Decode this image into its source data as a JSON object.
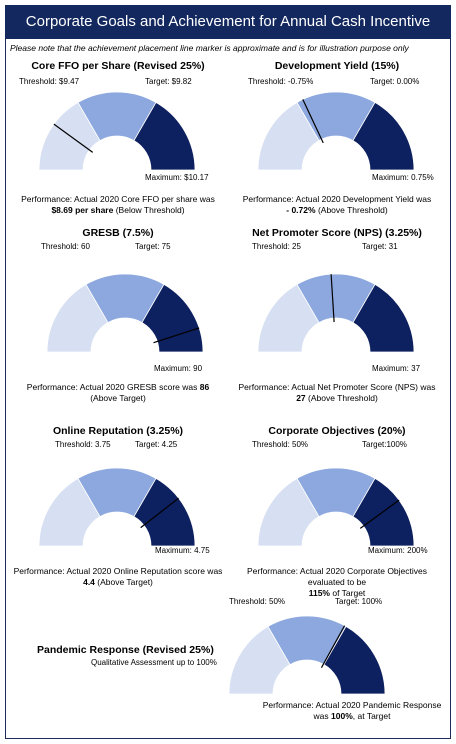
{
  "title": "Corporate Goals and Achievement for Annual Cash Incentive",
  "note": "Please note that the achievement placement line marker is approximate and is for illustration purpose only",
  "colors": {
    "header_bg": "#13285f",
    "light": "#d7e0f2",
    "mid": "#8da8de",
    "dark": "#0d205f",
    "needle": "#000000"
  },
  "chart_data": [
    {
      "type": "gauge",
      "id": "ffo",
      "title": "Core FFO per Share (Revised 25%)",
      "threshold_label": "Threshold: $9.47",
      "target_label": "Target: $9.82",
      "maximum_label": "Maximum: $10.17",
      "perf_text": "Performance: Actual 2020 Core FFO per share was",
      "perf_value": "$8.69 per share",
      "perf_suffix": "(Below Threshold)",
      "needle_fraction": 0.2
    },
    {
      "type": "gauge",
      "id": "dev",
      "title": "Development Yield (15%)",
      "threshold_label": "Threshold: -0.75%",
      "target_label": "Target: 0.00%",
      "maximum_label": "Maximum: 0.75%",
      "perf_text": "Performance: Actual 2020 Development Yield was",
      "perf_value": "- 0.72%",
      "perf_suffix": "(Above Threshold)",
      "needle_fraction": 0.36
    },
    {
      "type": "gauge",
      "id": "gresb",
      "title": "GRESB (7.5%)",
      "threshold_label": "Threshold: 60",
      "target_label": "Target: 75",
      "maximum_label": "Maximum: 90",
      "perf_text": "Performance: Actual 2020 GRESB score was",
      "perf_value": "86",
      "perf_suffix": "(Above Target)",
      "needle_fraction": 0.9
    },
    {
      "type": "gauge",
      "id": "nps",
      "title": "Net Promoter Score (NPS) (3.25%)",
      "threshold_label": "Threshold: 25",
      "target_label": "Target: 31",
      "maximum_label": "Maximum: 37",
      "perf_text": "Performance: Actual Net Promoter Score (NPS) was",
      "perf_value": "27",
      "perf_suffix": "(Above Threshold)",
      "needle_fraction": 0.48
    },
    {
      "type": "gauge",
      "id": "online",
      "title": "Online Reputation (3.25%)",
      "threshold_label": "Threshold: 3.75",
      "target_label": "Target: 4.25",
      "maximum_label": "Maximum: 4.75",
      "perf_text": "Performance: Actual 2020 Online Reputation score was",
      "perf_value": "4.4",
      "perf_suffix": "(Above Target)",
      "needle_fraction": 0.79
    },
    {
      "type": "gauge",
      "id": "corp",
      "title": "Corporate Objectives (20%)",
      "threshold_label": "Threshold: 50%",
      "target_label": "Target:100%",
      "maximum_label": "Maximum: 200%",
      "perf_text": "Performance: Actual 2020 Corporate Objectives evaluated to be",
      "perf_value": "115%",
      "perf_suffix": "of Target",
      "needle_fraction": 0.8
    },
    {
      "type": "gauge",
      "id": "pandemic",
      "title": "Pandemic Response (Revised 25%)",
      "subtitle": "Qualitative Assessment up to 100%",
      "threshold_label": "Threshold: 50%",
      "target_label": "Target: 100%",
      "perf_text": "Performance: Actual 2020 Pandemic Response was",
      "perf_value": "100%",
      "perf_suffix": ", at Target",
      "needle_fraction": 0.66
    }
  ]
}
